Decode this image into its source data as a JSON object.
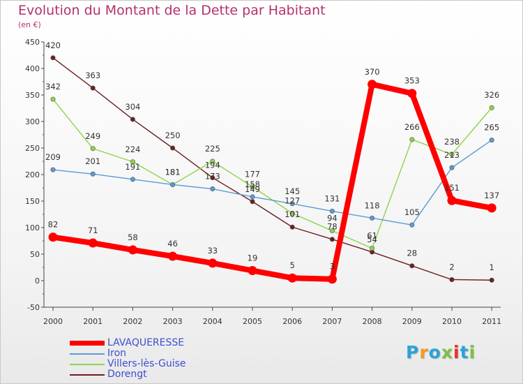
{
  "title": "Evolution du Montant de la Dette par Habitant",
  "subtitle": "(en €)",
  "logo": {
    "text": "Proxiti",
    "letter_colors": [
      "#2aa3d9",
      "#f39c1b",
      "#2aa3d9",
      "#7cc242",
      "#e8312b",
      "#2aa3d9",
      "#7cc242"
    ]
  },
  "chart_data": {
    "type": "line",
    "title": "Evolution du Montant de la Dette par Habitant",
    "ylabel": "(en €)",
    "xlabel": "",
    "ylim": [
      -50,
      450
    ],
    "yticks": [
      "-50",
      "0",
      "50",
      "100",
      "150",
      "200",
      "250",
      "300",
      "350",
      "400",
      "450"
    ],
    "x": [
      "2000",
      "2001",
      "2002",
      "2003",
      "2004",
      "2005",
      "2006",
      "2007",
      "2008",
      "2009",
      "2010",
      "2011"
    ],
    "grid": false,
    "legend_position": "bottom-left",
    "series": [
      {
        "name": "LAVAQUERESSE",
        "color": "#ff0000",
        "values": [
          82,
          71,
          58,
          46,
          33,
          19,
          5,
          3,
          370,
          353,
          151,
          137
        ]
      },
      {
        "name": "Iron",
        "color": "#5b9bd5",
        "values": [
          209,
          201,
          191,
          181,
          173,
          158,
          145,
          131,
          118,
          105,
          213,
          265
        ]
      },
      {
        "name": "Villers-lès-Guise",
        "color": "#8fd44a",
        "values": [
          342,
          249,
          224,
          181,
          225,
          177,
          127,
          94,
          61,
          266,
          238,
          326
        ]
      },
      {
        "name": "Dorengt",
        "color": "#6b1f22",
        "values": [
          420,
          363,
          304,
          250,
          194,
          149,
          101,
          78,
          54,
          28,
          2,
          1
        ]
      }
    ],
    "data_labels": [
      [
        "82",
        "71",
        "58",
        "46",
        "33",
        "19",
        "5",
        "3",
        "370",
        "353",
        "151",
        "137"
      ],
      [
        "209",
        "201",
        "191",
        "181",
        "173",
        "158",
        "145",
        "131",
        "118",
        "105",
        "213",
        "265"
      ],
      [
        "342",
        "249",
        "224",
        "181",
        "225",
        "177",
        "127",
        "94",
        "61",
        "266",
        "238",
        "326"
      ],
      [
        "420",
        "363",
        "304",
        "250",
        "194",
        "149",
        "101",
        "78",
        "54",
        "28",
        "2",
        "1"
      ]
    ]
  }
}
